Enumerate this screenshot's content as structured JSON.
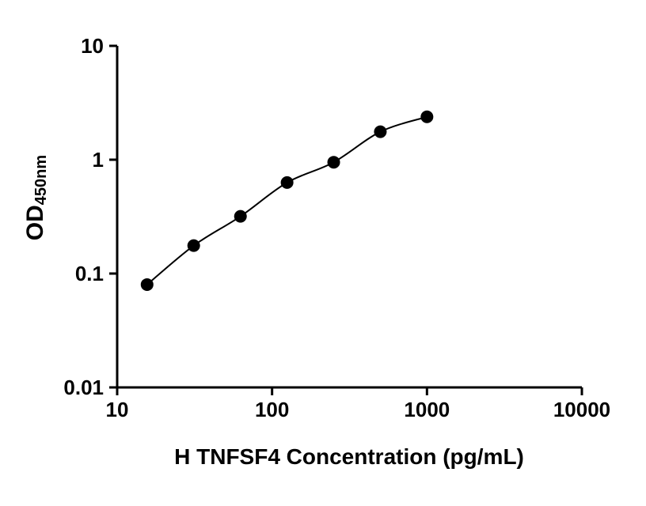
{
  "chart_data": {
    "type": "scatter",
    "title": "",
    "xlabel": "H TNFSF4 Concentration (pg/mL)",
    "ylabel_main": "OD",
    "ylabel_sub": "450nm",
    "x": [
      15.6,
      31.2,
      62.5,
      125,
      250,
      500,
      1000
    ],
    "y": [
      0.08,
      0.176,
      0.318,
      0.63,
      0.95,
      1.76,
      2.38
    ],
    "xscale": "log",
    "yscale": "log",
    "xlim": [
      10,
      10000
    ],
    "ylim": [
      0.01,
      10
    ],
    "x_ticks": [
      10,
      100,
      1000,
      10000
    ],
    "x_tick_labels": [
      "10",
      "100",
      "1000",
      "10000"
    ],
    "y_ticks": [
      0.01,
      0.1,
      1,
      10
    ],
    "y_tick_labels": [
      "0.01",
      "0.1",
      "1",
      "10"
    ],
    "grid": false,
    "legend": false,
    "line_color": "#000000",
    "marker_color": "#000000",
    "axis_color": "#000000",
    "background_color": "#ffffff",
    "marker_radius": 8,
    "line_width": 2,
    "axis_width": 3
  }
}
